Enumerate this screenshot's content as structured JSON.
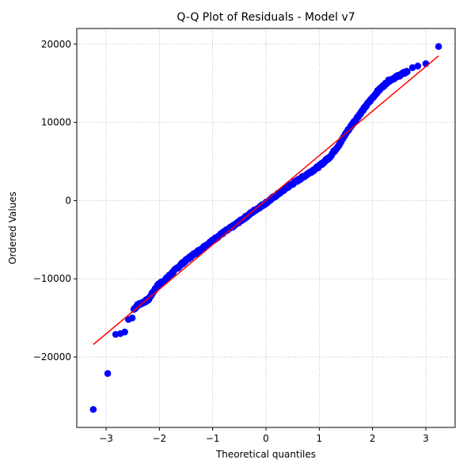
{
  "chart_data": {
    "type": "scatter",
    "title": "Q-Q Plot of Residuals - Model v7",
    "xlabel": "Theoretical quantiles",
    "ylabel": "Ordered Values",
    "xlim": [
      -3.55,
      3.55
    ],
    "ylim": [
      -29000,
      22000
    ],
    "x_ticks": [
      -3,
      -2,
      -1,
      0,
      1,
      2,
      3
    ],
    "x_tick_labels": [
      "−3",
      "−2",
      "−1",
      "0",
      "1",
      "2",
      "3"
    ],
    "y_ticks": [
      -20000,
      -10000,
      0,
      10000,
      20000
    ],
    "y_tick_labels": [
      "−20000",
      "−10000",
      "0",
      "10000",
      "20000"
    ],
    "grid": true,
    "grid_style": "dotted",
    "point_color": "#0000ff",
    "line_color": "#ff0000",
    "fit_line": {
      "x": [
        -3.24,
        3.24
      ],
      "y": [
        -18400,
        18500
      ]
    },
    "outliers_low": [
      [
        -3.24,
        -26700
      ],
      [
        -2.97,
        -22100
      ],
      [
        -2.82,
        -17100
      ],
      [
        -2.73,
        -17000
      ],
      [
        -2.65,
        -16800
      ],
      [
        -2.58,
        -15200
      ],
      [
        -2.51,
        -15000
      ]
    ],
    "outliers_high": [
      [
        2.75,
        17000
      ],
      [
        2.85,
        17200
      ],
      [
        3.0,
        17500
      ],
      [
        3.24,
        19700
      ]
    ],
    "body_profile": [
      [
        -2.48,
        -13900
      ],
      [
        -2.4,
        -13300
      ],
      [
        -2.3,
        -13000
      ],
      [
        -2.2,
        -12600
      ],
      [
        -2.1,
        -11500
      ],
      [
        -2.0,
        -10600
      ],
      [
        -1.9,
        -10200
      ],
      [
        -1.8,
        -9500
      ],
      [
        -1.6,
        -8200
      ],
      [
        -1.4,
        -7100
      ],
      [
        -1.2,
        -6100
      ],
      [
        -1.0,
        -5100
      ],
      [
        -0.8,
        -4100
      ],
      [
        -0.6,
        -3200
      ],
      [
        -0.4,
        -2200
      ],
      [
        -0.2,
        -1200
      ],
      [
        0.0,
        -300
      ],
      [
        0.2,
        700
      ],
      [
        0.4,
        1700
      ],
      [
        0.6,
        2600
      ],
      [
        0.8,
        3500
      ],
      [
        1.0,
        4400
      ],
      [
        1.2,
        5600
      ],
      [
        1.4,
        7400
      ],
      [
        1.5,
        8600
      ],
      [
        1.7,
        10500
      ],
      [
        1.9,
        12300
      ],
      [
        2.1,
        14000
      ],
      [
        2.3,
        15300
      ],
      [
        2.5,
        16000
      ],
      [
        2.65,
        16500
      ]
    ],
    "n_points": 500
  }
}
